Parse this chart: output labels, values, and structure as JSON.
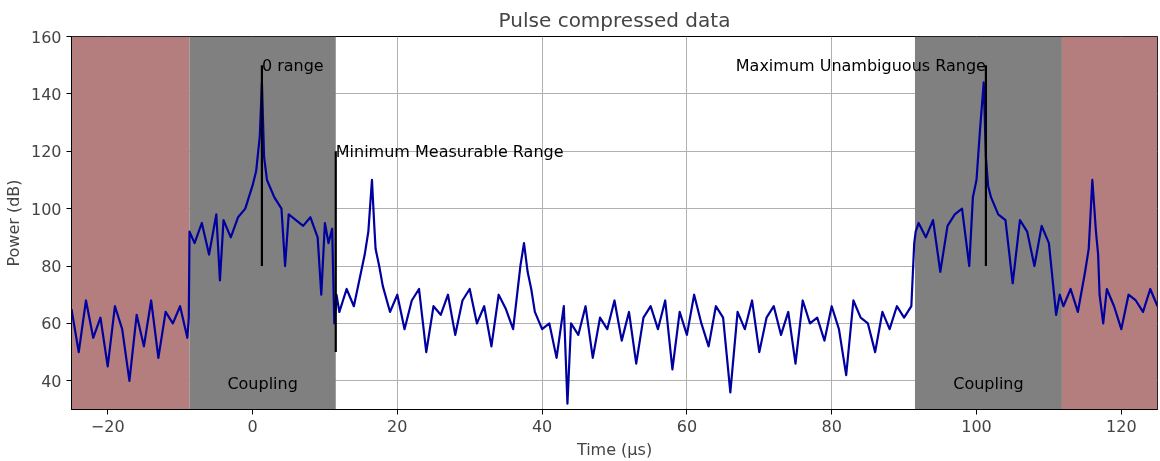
{
  "chart_data": {
    "type": "line",
    "title": "Pulse compressed data",
    "xlabel": "Time (μs)",
    "ylabel": "Power (dB)",
    "xlim": [
      -25,
      125
    ],
    "ylim": [
      30,
      160
    ],
    "xticks": [
      -20,
      0,
      20,
      40,
      60,
      80,
      100,
      120
    ],
    "yticks": [
      40,
      60,
      80,
      100,
      120,
      140,
      160
    ],
    "grid": true,
    "series": [
      {
        "color": "#0000a0",
        "x": [
          -25,
          -24,
          -23,
          -22,
          -21,
          -20,
          -19,
          -18,
          -17,
          -16,
          -15,
          -14,
          -13,
          -12,
          -11,
          -10,
          -9,
          -8.8,
          -8.7,
          -8,
          -7,
          -6,
          -5,
          -4.5,
          -4,
          -3,
          -2,
          -1,
          0,
          0.5,
          1,
          1.3,
          1.6,
          2,
          3,
          4,
          4.5,
          5,
          6,
          7,
          8,
          9,
          9.5,
          10,
          10.5,
          11,
          11.3,
          11.6,
          12,
          13,
          14,
          15,
          15.5,
          16,
          16.5,
          16.8,
          17,
          17.5,
          18,
          19,
          20,
          21,
          22,
          23,
          24,
          25,
          26,
          27,
          28,
          29,
          30,
          31,
          32,
          33,
          34,
          35,
          36,
          37,
          37.5,
          38,
          38.5,
          39,
          40,
          41,
          42,
          43,
          43.5,
          44,
          45,
          46,
          47,
          48,
          49,
          50,
          51,
          52,
          53,
          54,
          55,
          56,
          57,
          58,
          59,
          60,
          61,
          62,
          63,
          64,
          65,
          66,
          67,
          68,
          69,
          70,
          71,
          72,
          73,
          74,
          75,
          76,
          77,
          78,
          79,
          80,
          81,
          82,
          83,
          84,
          85,
          86,
          87,
          88,
          89,
          90,
          91,
          91.4,
          91.6,
          92,
          93,
          94,
          95,
          96,
          97,
          98,
          99,
          99.5,
          100,
          100.5,
          101,
          101.3,
          101.6,
          102,
          103,
          104,
          105,
          106,
          107,
          108,
          109,
          110,
          111,
          111.5,
          112,
          113,
          114,
          115,
          115.5,
          116,
          116.5,
          116.8,
          117,
          117.5,
          118,
          119,
          120,
          121,
          122,
          123,
          124,
          125
        ],
        "values": [
          65,
          50,
          68,
          55,
          62,
          45,
          66,
          58,
          40,
          63,
          52,
          68,
          48,
          64,
          60,
          66,
          55,
          62,
          92,
          88,
          95,
          84,
          98,
          75,
          96,
          90,
          97,
          100,
          108,
          113,
          125,
          144,
          118,
          110,
          104,
          100,
          80,
          98,
          96,
          94,
          97,
          90,
          70,
          95,
          88,
          93,
          60,
          70,
          64,
          72,
          66,
          78,
          84,
          92,
          110,
          95,
          86,
          80,
          73,
          64,
          70,
          58,
          68,
          72,
          50,
          66,
          63,
          70,
          56,
          68,
          72,
          60,
          66,
          52,
          70,
          65,
          58,
          80,
          88,
          78,
          72,
          64,
          58,
          60,
          48,
          66,
          32,
          60,
          56,
          66,
          48,
          62,
          58,
          68,
          54,
          64,
          46,
          62,
          66,
          58,
          68,
          44,
          64,
          56,
          70,
          60,
          52,
          66,
          62,
          36,
          64,
          58,
          68,
          50,
          62,
          66,
          56,
          64,
          46,
          68,
          60,
          62,
          54,
          66,
          58,
          42,
          68,
          62,
          60,
          50,
          64,
          58,
          66,
          62,
          66,
          88,
          92,
          95,
          90,
          96,
          78,
          94,
          98,
          100,
          80,
          104,
          110,
          128,
          144,
          118,
          108,
          104,
          98,
          96,
          74,
          96,
          92,
          80,
          94,
          88,
          63,
          70,
          66,
          72,
          64,
          78,
          86,
          110,
          92,
          84,
          70,
          60,
          72,
          66,
          58,
          70,
          68,
          64,
          72,
          66
        ]
      },
      {
        "color": "#000000",
        "x": [
          1.3,
          1.3
        ],
        "values": [
          80,
          150
        ]
      },
      {
        "color": "#000000",
        "x": [
          11.5,
          11.5
        ],
        "values": [
          50,
          120
        ]
      },
      {
        "color": "#000000",
        "x": [
          101.3,
          101.3
        ],
        "values": [
          80,
          150
        ]
      }
    ],
    "bands": [
      {
        "axis": "x",
        "from": -25,
        "to": -8.7,
        "color": "#b57e7e"
      },
      {
        "axis": "x",
        "from": -8.7,
        "to": 11.5,
        "color": "#808080",
        "label": "Coupling"
      },
      {
        "axis": "x",
        "from": 91.5,
        "to": 111.8,
        "color": "#808080",
        "label": "Coupling"
      },
      {
        "axis": "x",
        "from": 111.8,
        "to": 125,
        "color": "#b57e7e"
      }
    ],
    "annotations": [
      {
        "text": "0 range",
        "x": 1.3,
        "y": 150
      },
      {
        "text": "Minimum Measurable Range",
        "x": 11.5,
        "y": 120
      },
      {
        "text": "Maximum Unambiguous Range",
        "x": 101.3,
        "y": 150
      }
    ]
  }
}
